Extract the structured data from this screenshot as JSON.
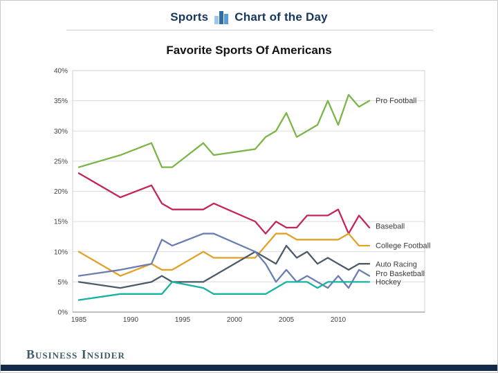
{
  "header": {
    "left": "Sports",
    "right": "Chart of the Day",
    "icon": "bar-chart-icon"
  },
  "title": "Favorite Sports Of Americans",
  "footer": {
    "brand": "Business Insider"
  },
  "theme": {
    "header_navy": "#17365d",
    "icon_bar_colors": [
      "#9fc5e8",
      "#2d6da8",
      "#5b9bd5"
    ],
    "gridline": "#dcdcdc",
    "plot_border": "#cfcfcf",
    "axis_line": "#9a9a9a",
    "tick_text": "#3f3f3f",
    "end_label_text": "#3a3a3a",
    "footer_text": "#3f5a69",
    "footer_bar": "#15294a"
  },
  "chart_data": {
    "type": "line",
    "title": "Favorite Sports Of Americans",
    "xlabel": "",
    "ylabel": "",
    "ylim": [
      0,
      40
    ],
    "y_tick_labels": [
      "0%",
      "5%",
      "10%",
      "15%",
      "20%",
      "25%",
      "30%",
      "35%",
      "40%"
    ],
    "x_tick_years": [
      1985,
      1990,
      1995,
      2000,
      2005,
      2010
    ],
    "x_tick_labels": [
      "1985",
      "1990",
      "1995",
      "2000",
      "2005",
      "2010"
    ],
    "grid": "horizontal",
    "legend_position": "line-end-labels-right",
    "x": [
      1985,
      1989,
      1992,
      1993,
      1994,
      1997,
      1998,
      2002,
      2003,
      2004,
      2005,
      2006,
      2007,
      2008,
      2009,
      2010,
      2011,
      2012,
      2013
    ],
    "series": [
      {
        "name": "Pro Football",
        "color": "#7ab648",
        "values": [
          24,
          26,
          28,
          24,
          24,
          28,
          26,
          27,
          29,
          30,
          33,
          29,
          30,
          31,
          35,
          31,
          36,
          34,
          35
        ]
      },
      {
        "name": "Baseball",
        "color": "#c4245c",
        "values": [
          23,
          19,
          21,
          18,
          17,
          17,
          18,
          15,
          13,
          15,
          14,
          14,
          16,
          16,
          16,
          17,
          13,
          16,
          14
        ]
      },
      {
        "name": "College Football",
        "color": "#e0a126",
        "values": [
          10,
          6,
          8,
          7,
          7,
          10,
          9,
          9,
          11,
          13,
          13,
          12,
          12,
          12,
          12,
          12,
          13,
          11,
          11
        ]
      },
      {
        "name": "Auto Racing",
        "color": "#4d5a68",
        "values": [
          5,
          4,
          5,
          6,
          5,
          5,
          6,
          10,
          9,
          8,
          11,
          9,
          10,
          8,
          9,
          8,
          7,
          8,
          8
        ]
      },
      {
        "name": "Pro Basketball",
        "color": "#6b7db3",
        "values": [
          6,
          7,
          8,
          12,
          11,
          13,
          13,
          10,
          8,
          5,
          7,
          5,
          6,
          5,
          4,
          6,
          4,
          7,
          6
        ]
      },
      {
        "name": "Hockey",
        "color": "#16b2a2",
        "values": [
          2,
          3,
          3,
          3,
          5,
          4,
          3,
          3,
          3,
          4,
          5,
          5,
          5,
          4,
          5,
          5,
          5,
          5,
          5
        ]
      }
    ]
  }
}
